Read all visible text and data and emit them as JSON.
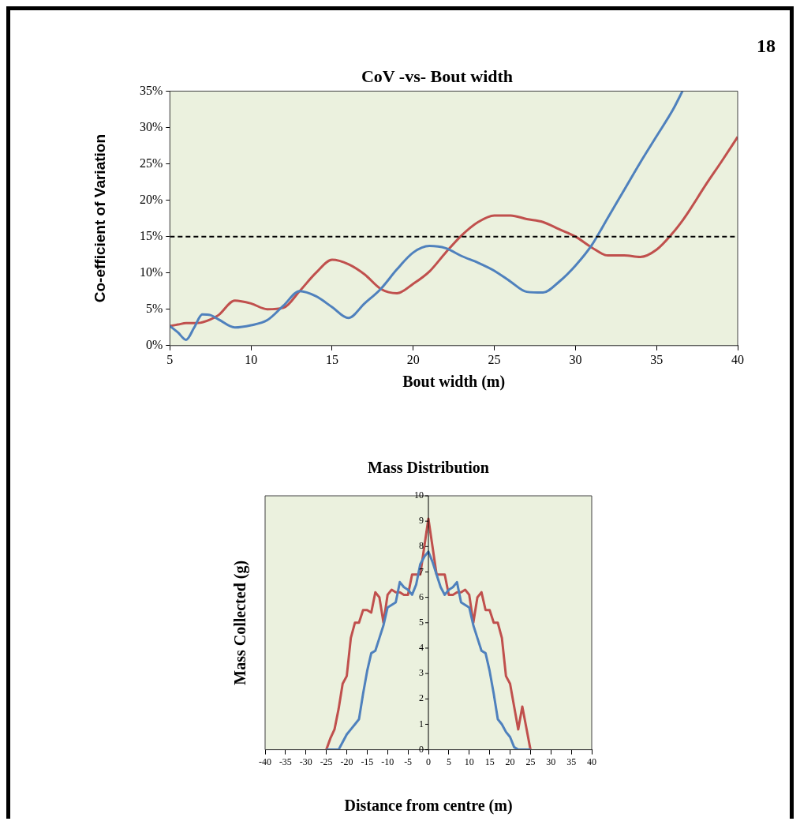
{
  "chart_data": [
    {
      "type": "line",
      "title": "CoV -vs- Bout width",
      "xlabel": "Bout width (m)",
      "ylabel": "Co-efficient of Variation",
      "annotations": [
        "18"
      ],
      "x": [
        5,
        5.5,
        6,
        6.5,
        7,
        7.5,
        8,
        9,
        10,
        11,
        12,
        13,
        14,
        15,
        16,
        17,
        18,
        19,
        20,
        21,
        22,
        23,
        24,
        25,
        26,
        27,
        28,
        29,
        30,
        31,
        32,
        33,
        34,
        35,
        36,
        36.6,
        37,
        38,
        39,
        40
      ],
      "series": [
        {
          "color": "#4f81bd",
          "values": [
            2.7,
            1.8,
            0.8,
            2.5,
            4.3,
            4.2,
            3.6,
            2.5,
            2.8,
            3.5,
            5.5,
            7.5,
            6.8,
            5.3,
            3.8,
            5.8,
            7.8,
            10.5,
            12.8,
            13.7,
            13.4,
            12.3,
            11.4,
            10.3,
            8.8,
            7.4,
            7.3,
            8.8,
            11,
            13.8,
            17.6,
            21.4,
            25.2,
            28.8,
            32.4,
            35,
            null,
            null,
            null,
            null
          ]
        },
        {
          "color": "#c0504d",
          "values": [
            2.7,
            2.9,
            3.1,
            3.1,
            3.2,
            3.6,
            4.2,
            6.2,
            5.8,
            5.0,
            5.2,
            7.5,
            10.0,
            11.8,
            11.2,
            9.8,
            7.8,
            7.2,
            8.5,
            10.2,
            12.8,
            15.2,
            17.0,
            17.9,
            17.9,
            17.4,
            17.0,
            16.0,
            15.0,
            13.5,
            12.4,
            12.4,
            12.2,
            13.2,
            15.5,
            17.2,
            18.5,
            22.0,
            25.3,
            28.7
          ]
        }
      ],
      "xlim": [
        5,
        40
      ],
      "xticks": [
        5,
        10,
        15,
        20,
        25,
        30,
        35,
        40
      ],
      "ylim": [
        0,
        35
      ],
      "yticks": [
        {
          "value": 0,
          "label": "0%"
        },
        {
          "value": 5,
          "label": "5%"
        },
        {
          "value": 10,
          "label": "10%"
        },
        {
          "value": 15,
          "label": "15%"
        },
        {
          "value": 20,
          "label": "20%"
        },
        {
          "value": 25,
          "label": "25%"
        },
        {
          "value": 30,
          "label": "30%"
        },
        {
          "value": 35,
          "label": "35%"
        }
      ],
      "ref_lines": [
        {
          "axis": "y",
          "value": 15,
          "color": "#000000",
          "line_style": "dashed"
        }
      ],
      "grid": false,
      "legend": false
    },
    {
      "type": "line",
      "title": "Mass Distribution",
      "xlabel": "Distance from centre (m)",
      "ylabel": "Mass Collected (g)",
      "x": [
        -25,
        -24,
        -23,
        -22,
        -21,
        -20,
        -19,
        -18,
        -17,
        -16,
        -15,
        -14,
        -13,
        -12,
        -11,
        -10,
        -9,
        -8,
        -7,
        -6,
        -5,
        -4,
        -3,
        -2,
        -1,
        0,
        1,
        2,
        3,
        4,
        5,
        6,
        7,
        8,
        9,
        10,
        11,
        12,
        13,
        14,
        15,
        16,
        17,
        18,
        19,
        20,
        21,
        22,
        23,
        24,
        25
      ],
      "series": [
        {
          "color": "#4f81bd",
          "values": [
            0,
            0,
            0,
            0,
            0.3,
            0.6,
            0.8,
            1.0,
            1.2,
            2.2,
            3.1,
            3.8,
            3.9,
            4.4,
            4.9,
            5.6,
            5.7,
            5.8,
            6.6,
            6.4,
            6.3,
            6.1,
            6.5,
            7.3,
            7.6,
            7.8,
            7.4,
            6.9,
            6.4,
            6.1,
            6.3,
            6.4,
            6.6,
            5.8,
            5.7,
            5.6,
            4.9,
            4.4,
            3.9,
            3.8,
            3.1,
            2.2,
            1.2,
            1.0,
            0.7,
            0.5,
            0.1,
            0,
            0,
            0,
            0
          ]
        },
        {
          "color": "#c0504d",
          "values": [
            0,
            0.45,
            0.8,
            1.6,
            2.6,
            2.9,
            4.4,
            5.0,
            5.0,
            5.5,
            5.5,
            5.4,
            6.2,
            6.0,
            5.0,
            6.1,
            6.3,
            6.2,
            6.2,
            6.1,
            6.1,
            6.9,
            6.9,
            6.9,
            8.0,
            9.1,
            8.0,
            6.9,
            6.9,
            6.9,
            6.1,
            6.1,
            6.2,
            6.2,
            6.3,
            6.1,
            5.0,
            6.0,
            6.2,
            5.5,
            5.5,
            5.0,
            5.0,
            4.4,
            2.9,
            2.6,
            1.7,
            0.8,
            1.7,
            0.85,
            0
          ]
        }
      ],
      "xlim": [
        -40,
        40
      ],
      "xticks": [
        -40,
        -35,
        -30,
        -25,
        -20,
        -15,
        -10,
        -5,
        0,
        5,
        10,
        15,
        20,
        25,
        30,
        35,
        40
      ],
      "ylim": [
        0,
        10
      ],
      "yticks": [
        0,
        1,
        2,
        3,
        4,
        5,
        6,
        7,
        8,
        9,
        10
      ],
      "grid": false,
      "legend": false
    }
  ]
}
